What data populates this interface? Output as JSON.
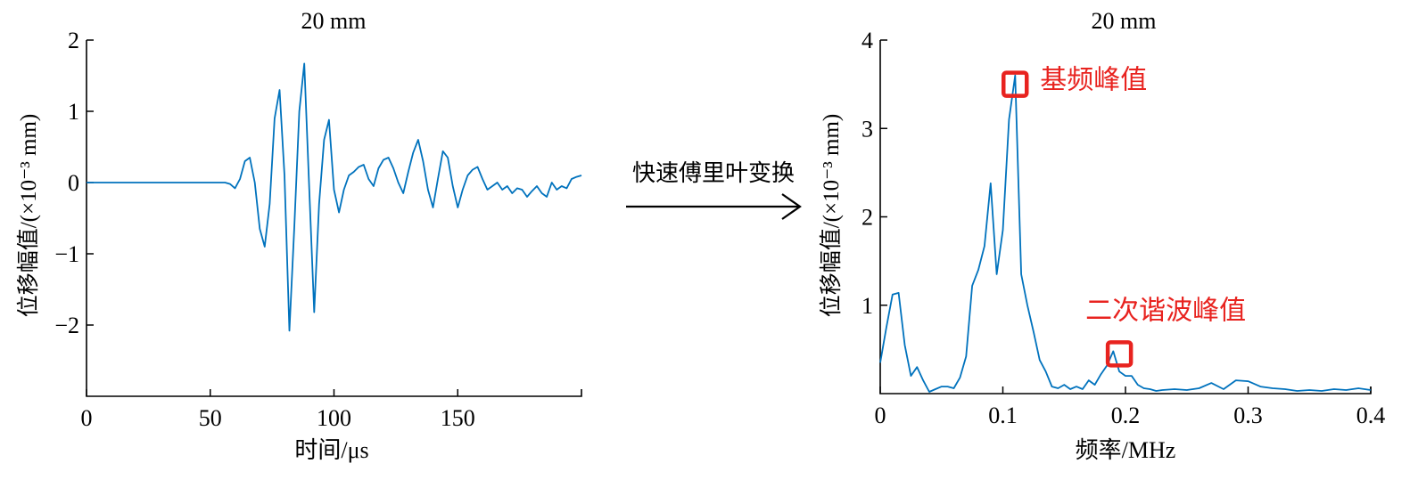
{
  "arrow_label": "快速傅里叶变换",
  "colors": {
    "line": "#0072BD",
    "annotation": "#E8231F",
    "axis": "#000000"
  },
  "chart_data": [
    {
      "type": "line",
      "title": "20 mm",
      "xlabel": "时间/μs",
      "ylabel": "位移幅值/(×10⁻³ mm)",
      "xlim": [
        0,
        200
      ],
      "ylim": [
        -3,
        2
      ],
      "xticks": [
        0,
        50,
        100,
        150
      ],
      "yticks": [
        -2,
        -1,
        0,
        1,
        2
      ],
      "xtick_labels": [
        "0",
        "50",
        "100",
        "150"
      ],
      "ytick_labels": [
        "−2",
        "−1",
        "0",
        "1",
        "2"
      ],
      "grid": false,
      "series": [
        {
          "x": [
            0,
            30,
            56,
            58,
            60,
            62,
            64,
            66,
            68,
            70,
            72,
            74,
            76,
            78,
            80,
            82,
            84,
            86,
            88,
            90,
            92,
            94,
            96,
            98,
            100,
            102,
            104,
            106,
            108,
            110,
            112,
            114,
            116,
            118,
            120,
            122,
            124,
            126,
            128,
            130,
            132,
            134,
            136,
            138,
            140,
            142,
            144,
            146,
            148,
            150,
            152,
            154,
            156,
            158,
            160,
            162,
            164,
            166,
            168,
            170,
            172,
            174,
            176,
            178,
            180,
            182,
            184,
            186,
            188,
            190,
            192,
            194,
            196,
            198,
            200
          ],
          "y": [
            0,
            0,
            0,
            -0.02,
            -0.08,
            0.05,
            0.3,
            0.35,
            0,
            -0.65,
            -0.9,
            -0.3,
            0.9,
            1.3,
            0.1,
            -2.08,
            -0.6,
            1.0,
            1.67,
            -0.1,
            -1.82,
            -0.3,
            0.6,
            0.88,
            -0.1,
            -0.42,
            -0.1,
            0.1,
            0.15,
            0.22,
            0.25,
            0.05,
            -0.05,
            0.2,
            0.32,
            0.35,
            0.2,
            0.0,
            -0.15,
            0.15,
            0.42,
            0.6,
            0.3,
            -0.1,
            -0.35,
            0.05,
            0.44,
            0.35,
            -0.05,
            -0.35,
            -0.1,
            0.1,
            0.18,
            0.22,
            0.05,
            -0.1,
            -0.05,
            0.0,
            -0.1,
            -0.05,
            -0.15,
            -0.08,
            -0.1,
            -0.2,
            -0.12,
            -0.05,
            -0.15,
            -0.2,
            0.0,
            -0.1,
            -0.05,
            -0.08,
            0.05,
            0.08,
            0.1
          ]
        }
      ]
    },
    {
      "type": "line",
      "title": "20 mm",
      "xlabel": "频率/MHz",
      "ylabel": "位移幅值/(×10⁻³ mm)",
      "xlim": [
        0,
        0.4
      ],
      "ylim": [
        0,
        4
      ],
      "xticks": [
        0,
        0.1,
        0.2,
        0.3,
        0.4
      ],
      "yticks": [
        1,
        2,
        3,
        4
      ],
      "xtick_labels": [
        "0",
        "0.1",
        "0.2",
        "0.3",
        "0.4"
      ],
      "ytick_labels": [
        "1",
        "2",
        "3",
        "4"
      ],
      "grid": false,
      "series": [
        {
          "x": [
            0,
            0.005,
            0.01,
            0.015,
            0.02,
            0.025,
            0.03,
            0.035,
            0.04,
            0.045,
            0.05,
            0.055,
            0.06,
            0.065,
            0.07,
            0.075,
            0.08,
            0.085,
            0.09,
            0.095,
            0.1,
            0.105,
            0.11,
            0.115,
            0.12,
            0.125,
            0.13,
            0.135,
            0.14,
            0.145,
            0.15,
            0.155,
            0.16,
            0.165,
            0.17,
            0.175,
            0.18,
            0.185,
            0.19,
            0.195,
            0.2,
            0.205,
            0.21,
            0.215,
            0.22,
            0.225,
            0.23,
            0.24,
            0.25,
            0.26,
            0.27,
            0.28,
            0.29,
            0.3,
            0.31,
            0.32,
            0.33,
            0.34,
            0.35,
            0.36,
            0.37,
            0.38,
            0.39,
            0.4
          ],
          "y": [
            0.35,
            0.75,
            1.12,
            1.14,
            0.55,
            0.2,
            0.3,
            0.15,
            0.02,
            0.05,
            0.08,
            0.08,
            0.06,
            0.18,
            0.42,
            1.22,
            1.4,
            1.67,
            2.38,
            1.35,
            1.85,
            3.1,
            3.6,
            1.35,
            1.0,
            0.7,
            0.38,
            0.25,
            0.08,
            0.06,
            0.1,
            0.05,
            0.08,
            0.05,
            0.15,
            0.1,
            0.22,
            0.32,
            0.48,
            0.25,
            0.2,
            0.2,
            0.1,
            0.06,
            0.05,
            0.03,
            0.04,
            0.05,
            0.04,
            0.06,
            0.12,
            0.05,
            0.15,
            0.14,
            0.08,
            0.06,
            0.05,
            0.03,
            0.04,
            0.03,
            0.05,
            0.04,
            0.06,
            0.04
          ]
        }
      ],
      "annotations": [
        {
          "label": "基频峰值",
          "x": 0.11,
          "y": 3.5
        },
        {
          "label": "二次谐波峰值",
          "x": 0.195,
          "y": 0.45
        }
      ]
    }
  ]
}
